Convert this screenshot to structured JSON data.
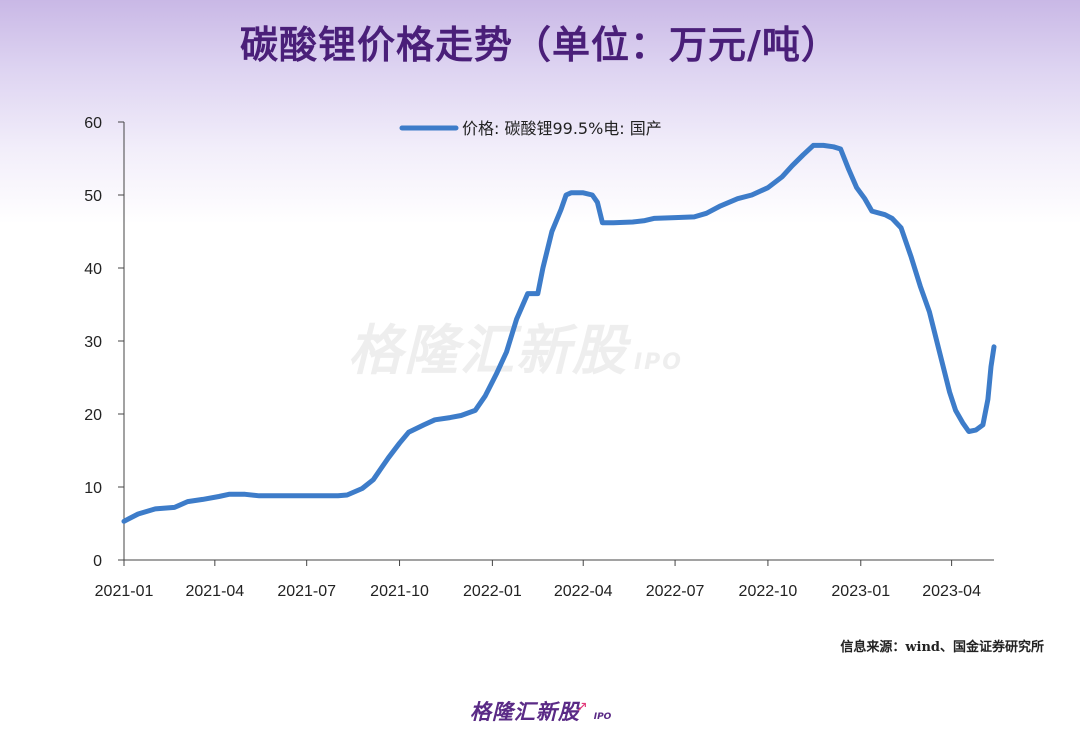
{
  "header": {
    "title": "碳酸锂价格走势（单位：万元/吨）"
  },
  "footer": {
    "source": "信息来源：wind、国金证券研究所"
  },
  "branding": {
    "logo_text": "格隆汇新股",
    "logo_sub": "IPO",
    "watermark_text": "格隆汇新股",
    "watermark_sub": "IPO",
    "accent_color": "#e23a7a",
    "brand_color": "#5a2a86"
  },
  "chart_data": {
    "type": "line",
    "title": "",
    "xlabel": "",
    "ylabel": "",
    "ylim": [
      0,
      60
    ],
    "yticks": [
      "0",
      "10",
      "20",
      "30",
      "40",
      "50",
      "60"
    ],
    "xticks": [
      "2021-01",
      "2021-04",
      "2021-07",
      "2021-10",
      "2022-01",
      "2022-04",
      "2022-07",
      "2022-10",
      "2023-01",
      "2023-04"
    ],
    "grid": false,
    "legend_position": "top-center",
    "series": [
      {
        "name": "价格: 碳酸锂99.5%电: 国产",
        "color": "#3d7cc9",
        "points": [
          [
            "2021-01-01",
            5.3
          ],
          [
            "2021-01-15",
            6.3
          ],
          [
            "2021-02-01",
            7.0
          ],
          [
            "2021-02-20",
            7.2
          ],
          [
            "2021-03-05",
            8.0
          ],
          [
            "2021-03-20",
            8.3
          ],
          [
            "2021-04-05",
            8.7
          ],
          [
            "2021-04-15",
            9.0
          ],
          [
            "2021-05-01",
            9.0
          ],
          [
            "2021-05-15",
            8.8
          ],
          [
            "2021-06-01",
            8.8
          ],
          [
            "2021-07-01",
            8.8
          ],
          [
            "2021-08-01",
            8.8
          ],
          [
            "2021-08-10",
            8.9
          ],
          [
            "2021-08-25",
            9.8
          ],
          [
            "2021-09-05",
            11.0
          ],
          [
            "2021-09-20",
            14.0
          ],
          [
            "2021-10-01",
            16.0
          ],
          [
            "2021-10-10",
            17.5
          ],
          [
            "2021-10-25",
            18.5
          ],
          [
            "2021-11-05",
            19.2
          ],
          [
            "2021-11-20",
            19.5
          ],
          [
            "2021-12-01",
            19.8
          ],
          [
            "2021-12-15",
            20.5
          ],
          [
            "2021-12-25",
            22.5
          ],
          [
            "2022-01-05",
            25.5
          ],
          [
            "2022-01-15",
            28.5
          ],
          [
            "2022-01-25",
            33.0
          ],
          [
            "2022-02-05",
            36.5
          ],
          [
            "2022-02-15",
            36.5
          ],
          [
            "2022-02-20",
            40.0
          ],
          [
            "2022-03-01",
            45.0
          ],
          [
            "2022-03-10",
            48.0
          ],
          [
            "2022-03-15",
            50.0
          ],
          [
            "2022-03-20",
            50.3
          ],
          [
            "2022-04-01",
            50.3
          ],
          [
            "2022-04-10",
            50.0
          ],
          [
            "2022-04-15",
            49.0
          ],
          [
            "2022-04-20",
            46.2
          ],
          [
            "2022-05-01",
            46.2
          ],
          [
            "2022-05-20",
            46.3
          ],
          [
            "2022-06-01",
            46.5
          ],
          [
            "2022-06-10",
            46.8
          ],
          [
            "2022-07-01",
            46.9
          ],
          [
            "2022-07-20",
            47.0
          ],
          [
            "2022-08-01",
            47.5
          ],
          [
            "2022-08-15",
            48.5
          ],
          [
            "2022-09-01",
            49.5
          ],
          [
            "2022-09-15",
            50.0
          ],
          [
            "2022-10-01",
            51.0
          ],
          [
            "2022-10-15",
            52.5
          ],
          [
            "2022-10-25",
            54.0
          ],
          [
            "2022-11-05",
            55.5
          ],
          [
            "2022-11-15",
            56.8
          ],
          [
            "2022-11-25",
            56.8
          ],
          [
            "2022-12-05",
            56.6
          ],
          [
            "2022-12-12",
            56.3
          ],
          [
            "2022-12-20",
            53.5
          ],
          [
            "2022-12-28",
            51.0
          ],
          [
            "2023-01-05",
            49.5
          ],
          [
            "2023-01-12",
            47.8
          ],
          [
            "2023-01-25",
            47.3
          ],
          [
            "2023-02-01",
            46.8
          ],
          [
            "2023-02-10",
            45.5
          ],
          [
            "2023-02-20",
            41.5
          ],
          [
            "2023-03-01",
            37.5
          ],
          [
            "2023-03-10",
            34.0
          ],
          [
            "2023-03-20",
            28.5
          ],
          [
            "2023-03-30",
            23.0
          ],
          [
            "2023-04-05",
            20.5
          ],
          [
            "2023-04-12",
            18.8
          ],
          [
            "2023-04-18",
            17.6
          ],
          [
            "2023-04-25",
            17.8
          ],
          [
            "2023-05-02",
            18.5
          ],
          [
            "2023-05-07",
            22.0
          ],
          [
            "2023-05-10",
            26.5
          ],
          [
            "2023-05-13",
            29.2
          ]
        ]
      }
    ]
  }
}
